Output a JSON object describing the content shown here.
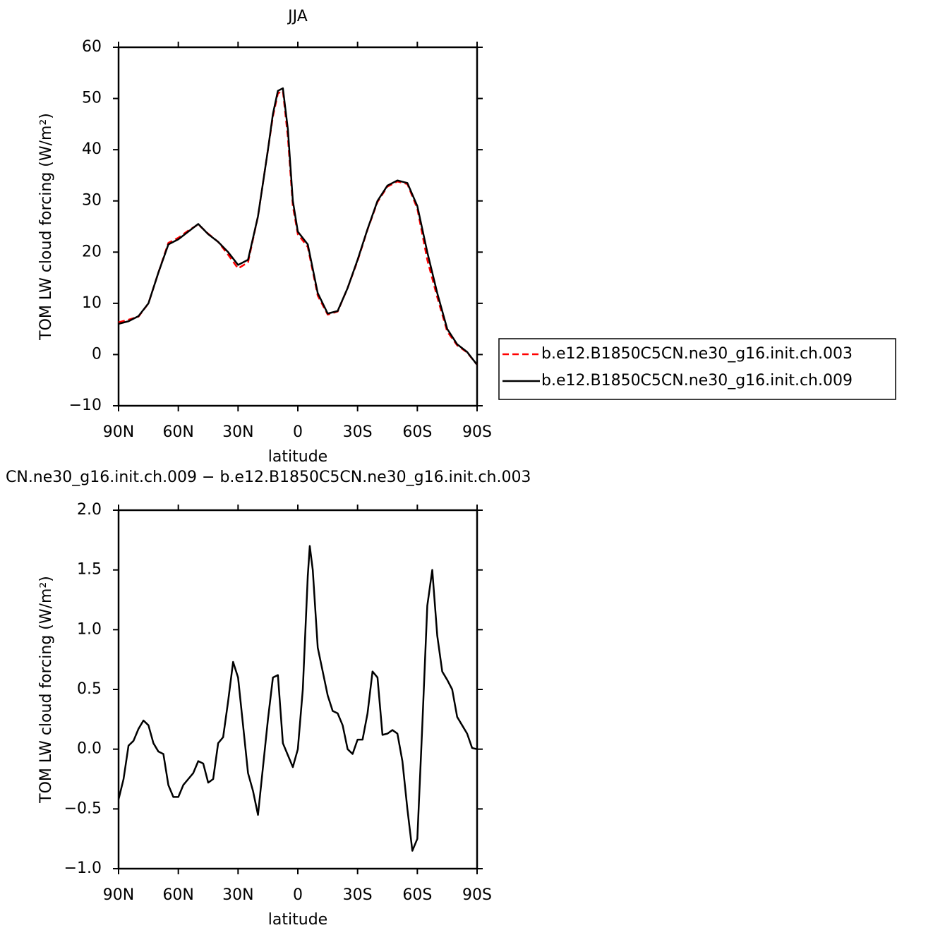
{
  "chart_data": [
    {
      "type": "line",
      "title": "JJA",
      "x_label": "latitude",
      "y_label": "TOM LW cloud forcing (W/m²)",
      "xlim": [
        90,
        -90
      ],
      "xticks": [
        {
          "value": 90,
          "label": "90N"
        },
        {
          "value": 60,
          "label": "60N"
        },
        {
          "value": 30,
          "label": "30N"
        },
        0,
        {
          "value": -30,
          "label": "30S"
        },
        {
          "value": -60,
          "label": "60S"
        },
        {
          "value": -90,
          "label": "90S"
        }
      ],
      "ylim": [
        -10,
        60
      ],
      "yticks": [
        {
          "value": -10,
          "label": "−10"
        },
        0,
        10,
        20,
        30,
        40,
        50,
        60
      ],
      "legend": "right",
      "x": [
        90,
        85,
        80,
        75,
        70,
        65,
        60,
        55,
        50,
        45,
        40,
        35,
        30,
        25,
        20,
        15,
        12.5,
        10,
        7.5,
        5,
        2.5,
        0,
        -5,
        -10,
        -15,
        -20,
        -25,
        -30,
        -35,
        -40,
        -45,
        -50,
        -55,
        -60,
        -65,
        -70,
        -75,
        -80,
        -85,
        -90
      ],
      "series": [
        {
          "name": "b.e12.B1850C5CN.ne30_g16.init.ch.003",
          "color": "#ff0000",
          "style": "dashed",
          "values": [
            6.3,
            6.8,
            7.4,
            10,
            16,
            21.8,
            22.8,
            24.2,
            25.4,
            23.6,
            22,
            19.5,
            16.8,
            18,
            27,
            40,
            46.5,
            51,
            51.5,
            42.5,
            29,
            23.5,
            21,
            11.5,
            7.8,
            8.4,
            13,
            18.3,
            24.4,
            29.8,
            32.8,
            33.8,
            33.3,
            28.5,
            18.5,
            11.2,
            4.5,
            1.8,
            0.4,
            -2
          ]
        },
        {
          "name": "b.e12.B1850C5CN.ne30_g16.init.ch.009",
          "color": "#000000",
          "style": "solid",
          "values": [
            6,
            6.5,
            7.5,
            10,
            16,
            21.5,
            22.5,
            24,
            25.5,
            23.5,
            22,
            20,
            17.5,
            18.5,
            27,
            40,
            47,
            51.5,
            52,
            44,
            30,
            24,
            21.5,
            12,
            8,
            8.5,
            13,
            18.5,
            24.5,
            30,
            33,
            34,
            33.5,
            29,
            20,
            12,
            5,
            2,
            0.5,
            -2
          ]
        }
      ]
    },
    {
      "type": "line",
      "title": "CN.ne30_g16.init.ch.009 − b.e12.B1850C5CN.ne30_g16.init.ch.003",
      "x_label": "latitude",
      "y_label": "TOM LW cloud forcing (W/m²)",
      "xlim": [
        90,
        -90
      ],
      "xticks": [
        {
          "value": 90,
          "label": "90N"
        },
        {
          "value": 60,
          "label": "60N"
        },
        {
          "value": 30,
          "label": "30N"
        },
        0,
        {
          "value": -30,
          "label": "30S"
        },
        {
          "value": -60,
          "label": "60S"
        },
        {
          "value": -90,
          "label": "90S"
        }
      ],
      "ylim": [
        -1,
        2
      ],
      "yticks": [
        {
          "value": -1,
          "label": "−1.0"
        },
        {
          "value": -0.5,
          "label": "−0.5"
        },
        {
          "value": 0,
          "label": "0.0"
        },
        0.5,
        {
          "value": 1,
          "label": "1.0"
        },
        1.5,
        {
          "value": 2,
          "label": "2.0"
        }
      ],
      "x": [
        90,
        87.5,
        85,
        82.5,
        80,
        77.5,
        75,
        72.5,
        70,
        67.5,
        65,
        62.5,
        60,
        57.5,
        55,
        52.5,
        50,
        47.5,
        45,
        42.5,
        40,
        37.5,
        35,
        32.5,
        30,
        27.5,
        25,
        22.5,
        20,
        17.5,
        15,
        12.5,
        10,
        7.5,
        5,
        2.5,
        0,
        -2.5,
        -5,
        -6,
        -7.5,
        -10,
        -12.5,
        -15,
        -17.5,
        -20,
        -22.5,
        -25,
        -27.5,
        -30,
        -32.5,
        -35,
        -37.5,
        -40,
        -42.5,
        -45,
        -47.5,
        -50,
        -52.5,
        -55,
        -57.5,
        -60,
        -62.5,
        -65,
        -67.5,
        -70,
        -72.5,
        -75,
        -77.5,
        -80,
        -82.5,
        -85,
        -87.5,
        -90
      ],
      "series": [
        {
          "color": "#000000",
          "values": [
            -0.42,
            -0.25,
            0.03,
            0.07,
            0.17,
            0.24,
            0.2,
            0.05,
            -0.02,
            -0.04,
            -0.3,
            -0.4,
            -0.4,
            -0.3,
            -0.25,
            -0.2,
            -0.1,
            -0.12,
            -0.28,
            -0.25,
            0.05,
            0.1,
            0.4,
            0.73,
            0.6,
            0.2,
            -0.2,
            -0.35,
            -0.55,
            -0.15,
            0.25,
            0.6,
            0.62,
            0.05,
            -0.05,
            -0.15,
            0.0,
            0.5,
            1.45,
            1.7,
            1.5,
            0.85,
            0.65,
            0.45,
            0.32,
            0.3,
            0.2,
            0.0,
            -0.04,
            0.08,
            0.08,
            0.3,
            0.65,
            0.6,
            0.12,
            0.13,
            0.16,
            0.13,
            -0.1,
            -0.5,
            -0.85,
            -0.75,
            0.2,
            1.2,
            1.5,
            0.95,
            0.65,
            0.58,
            0.5,
            0.27,
            0.2,
            0.13,
            0.01,
            0.0
          ]
        }
      ]
    }
  ]
}
